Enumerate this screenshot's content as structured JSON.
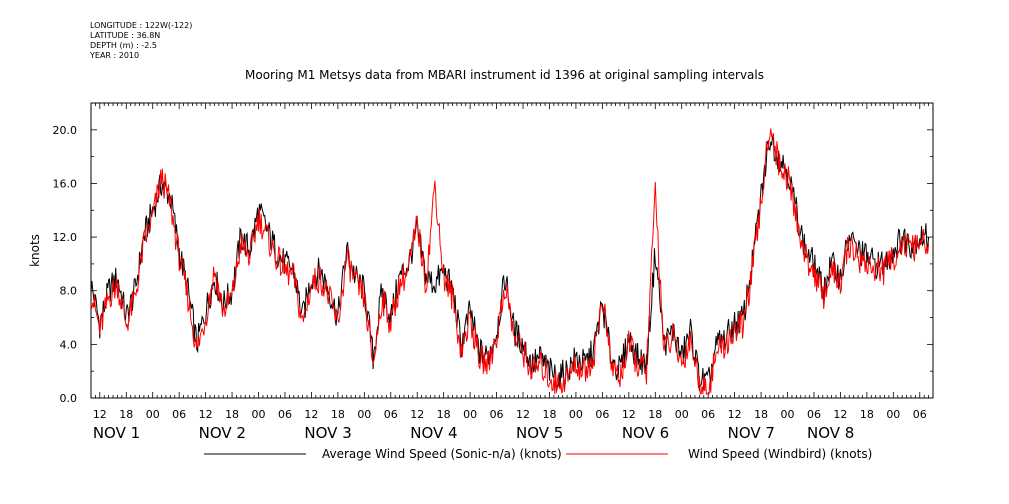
{
  "header": {
    "meta_lines": [
      "LONGITUDE : 122W(-122)",
      "LATITUDE : 36.8N",
      "DEPTH (m) : -2.5",
      "YEAR : 2010"
    ],
    "title": "Mooring M1 Metsys data from MBARI instrument id 1396 at original sampling intervals"
  },
  "chart_data": {
    "type": "line",
    "title": "Mooring M1 Metsys data from MBARI instrument id 1396 at original sampling intervals",
    "xlabel": "",
    "ylabel": "knots",
    "ylim": [
      0,
      22
    ],
    "xlim_hours": [
      -14,
      177
    ],
    "x_axis_note": "x values are hours from 00:00 Nov 1 2010",
    "yticks": [
      "0.0",
      "4.0",
      "8.0",
      "12.0",
      "16.0",
      "20.0"
    ],
    "xtick_hour_labels": [
      {
        "h": -12,
        "label": "12"
      },
      {
        "h": -6,
        "label": "18"
      },
      {
        "h": 0,
        "label": "00"
      },
      {
        "h": 6,
        "label": "06"
      },
      {
        "h": 12,
        "label": "12"
      },
      {
        "h": 18,
        "label": "18"
      },
      {
        "h": 24,
        "label": "00"
      },
      {
        "h": 30,
        "label": "06"
      },
      {
        "h": 36,
        "label": "12"
      },
      {
        "h": 42,
        "label": "18"
      },
      {
        "h": 48,
        "label": "00"
      },
      {
        "h": 54,
        "label": "06"
      },
      {
        "h": 60,
        "label": "12"
      },
      {
        "h": 66,
        "label": "18"
      },
      {
        "h": 72,
        "label": "00"
      },
      {
        "h": 78,
        "label": "06"
      },
      {
        "h": 84,
        "label": "12"
      },
      {
        "h": 90,
        "label": "18"
      },
      {
        "h": 96,
        "label": "00"
      },
      {
        "h": 102,
        "label": "06"
      },
      {
        "h": 108,
        "label": "12"
      },
      {
        "h": 114,
        "label": "18"
      },
      {
        "h": 120,
        "label": "00"
      },
      {
        "h": 126,
        "label": "06"
      },
      {
        "h": 132,
        "label": "12"
      },
      {
        "h": 138,
        "label": "18"
      },
      {
        "h": 144,
        "label": "00"
      },
      {
        "h": 150,
        "label": "06"
      },
      {
        "h": 156,
        "label": "12"
      },
      {
        "h": 162,
        "label": "18"
      },
      {
        "h": 168,
        "label": "00"
      },
      {
        "h": 174,
        "label": "06"
      }
    ],
    "xtick_day_labels": [
      {
        "h": -12,
        "label": "NOV  1"
      },
      {
        "h": 12,
        "label": "NOV  2"
      },
      {
        "h": 36,
        "label": "NOV  3"
      },
      {
        "h": 60,
        "label": "NOV  4"
      },
      {
        "h": 84,
        "label": "NOV  5"
      },
      {
        "h": 108,
        "label": "NOV  6"
      },
      {
        "h": 132,
        "label": "NOV  7"
      },
      {
        "h": 150,
        "label": "NOV  8"
      }
    ],
    "series": [
      {
        "name": "Average Wind Speed (Sonic-n/a) (knots)",
        "color": "#000000",
        "x": [
          -14,
          -12,
          -10,
          -8,
          -6,
          -4,
          -2,
          0,
          2,
          4,
          6,
          8,
          10,
          12,
          14,
          16,
          18,
          20,
          22,
          24,
          26,
          28,
          30,
          32,
          34,
          36,
          38,
          40,
          42,
          44,
          46,
          48,
          50,
          52,
          54,
          56,
          58,
          60,
          62,
          64,
          66,
          68,
          70,
          72,
          74,
          76,
          78,
          80,
          82,
          84,
          86,
          88,
          90,
          92,
          94,
          96,
          98,
          100,
          102,
          104,
          106,
          108,
          110,
          112,
          114,
          116,
          118,
          120,
          122,
          124,
          126,
          128,
          130,
          132,
          134,
          136,
          138,
          140,
          142,
          144,
          146,
          148,
          150,
          152,
          154,
          156,
          158,
          160,
          162,
          164,
          166,
          168,
          170,
          172,
          174,
          176
        ],
        "y": [
          8.5,
          5.5,
          8.0,
          9.0,
          6.0,
          8.0,
          12.0,
          14.0,
          16.0,
          15.0,
          11.0,
          8.0,
          4.0,
          6.5,
          9.0,
          7.0,
          8.0,
          12.0,
          11.0,
          14.0,
          12.5,
          11.0,
          10.0,
          9.5,
          6.0,
          9.0,
          9.5,
          8.0,
          6.0,
          11.0,
          9.0,
          8.0,
          3.0,
          8.0,
          6.0,
          9.0,
          10.0,
          12.5,
          9.0,
          8.5,
          9.5,
          8.0,
          4.0,
          6.5,
          3.5,
          3.0,
          5.0,
          9.0,
          5.0,
          4.0,
          2.5,
          3.0,
          2.0,
          1.5,
          2.0,
          3.0,
          2.5,
          3.5,
          7.0,
          3.0,
          2.0,
          4.5,
          3.0,
          2.5,
          11.0,
          4.0,
          5.0,
          3.0,
          5.0,
          1.5,
          1.0,
          4.0,
          4.5,
          5.5,
          6.0,
          10.0,
          15.0,
          19.5,
          18.0,
          17.0,
          14.0,
          11.0,
          10.0,
          8.0,
          10.0,
          9.0,
          12.0,
          11.0,
          10.5,
          10.0,
          10.0,
          11.0,
          12.0,
          11.5,
          12.0,
          12.0
        ],
        "y_trimmed_note": "series ends near 176h"
      },
      {
        "name": "Wind Speed (Windbird) (knots)",
        "color": "#ff0000",
        "x": [
          -14,
          -12,
          -10,
          -8,
          -6,
          -4,
          -2,
          0,
          2,
          4,
          6,
          8,
          10,
          12,
          14,
          16,
          18,
          20,
          22,
          24,
          26,
          28,
          30,
          32,
          34,
          36,
          38,
          40,
          42,
          44,
          46,
          48,
          50,
          52,
          54,
          56,
          58,
          60,
          62,
          64,
          66,
          68,
          70,
          72,
          74,
          76,
          78,
          80,
          82,
          84,
          86,
          88,
          90,
          92,
          94,
          96,
          98,
          100,
          102,
          104,
          106,
          108,
          110,
          112,
          114,
          116,
          118,
          120,
          122,
          124,
          126,
          128,
          130,
          132,
          134,
          136,
          138,
          140,
          142,
          144,
          146,
          148,
          150,
          152,
          154,
          156,
          158,
          160,
          162,
          164,
          166,
          168,
          170,
          172,
          174,
          176
        ],
        "y": [
          8.0,
          5.0,
          7.5,
          8.5,
          5.5,
          7.5,
          11.5,
          13.5,
          16.5,
          14.5,
          10.5,
          7.5,
          3.5,
          6.0,
          9.5,
          6.5,
          7.5,
          11.5,
          10.5,
          13.5,
          12.0,
          10.5,
          9.5,
          9.0,
          5.5,
          8.5,
          9.0,
          7.5,
          5.5,
          10.5,
          8.5,
          7.5,
          2.5,
          7.5,
          5.5,
          8.5,
          9.5,
          13.0,
          8.5,
          16.0,
          9.0,
          7.5,
          3.5,
          6.0,
          3.0,
          2.5,
          4.5,
          8.5,
          4.5,
          3.5,
          2.0,
          2.5,
          1.5,
          1.0,
          1.5,
          2.5,
          2.0,
          3.0,
          7.5,
          2.5,
          1.5,
          4.0,
          2.5,
          2.0,
          15.5,
          3.5,
          4.5,
          2.5,
          4.5,
          1.0,
          0.5,
          3.5,
          4.0,
          5.0,
          5.5,
          9.5,
          14.5,
          20.5,
          17.5,
          16.5,
          13.5,
          10.5,
          9.5,
          7.5,
          9.5,
          8.5,
          11.5,
          10.5,
          10.0,
          9.5,
          9.5,
          10.5,
          11.5,
          11.0,
          11.5,
          11.5
        ]
      }
    ]
  },
  "legend": {
    "items": [
      {
        "label": "Average Wind Speed (Sonic-n/a) (knots)",
        "color": "#000000"
      },
      {
        "label": "Wind Speed (Windbird) (knots)",
        "color": "#ff0000"
      }
    ]
  }
}
